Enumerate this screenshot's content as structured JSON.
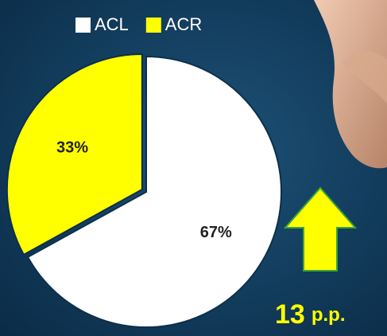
{
  "chart_data": {
    "type": "pie",
    "categories": [
      "ACL",
      "ACR"
    ],
    "values": [
      67,
      33
    ],
    "value_labels": [
      "67%",
      "33%"
    ],
    "colors": [
      "#ffffff",
      "#ffff00"
    ],
    "legend": "top",
    "annotation": {
      "number": "13",
      "unit": "p.p."
    }
  }
}
